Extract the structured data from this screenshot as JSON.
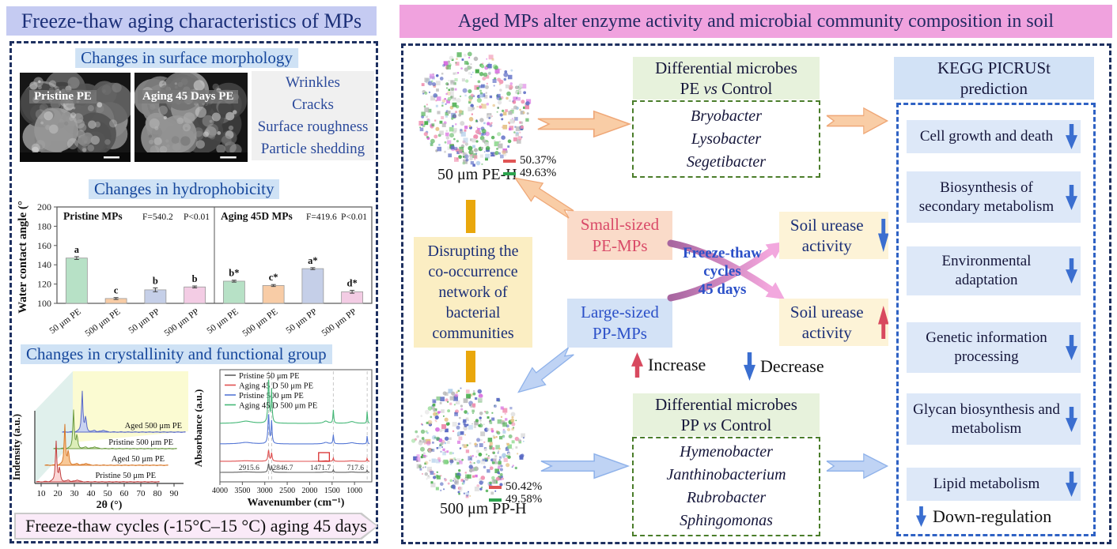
{
  "colors": {
    "leftTitleBg": "#c5cbf2",
    "rightTitleBg": "#f0a2de",
    "headHl": "#cfe2f5",
    "headText": "#16479c",
    "navyText": "#1b2f77",
    "dashBorder": "#1e3060",
    "greenHeadBg": "#e7f2dc",
    "greenDash": "#4a7d2a",
    "keggHeadBg": "#d2e2f6",
    "keggItemBg": "#dde8f8",
    "keggDash": "#2f62c4",
    "blueArrow": "#3a6ed0",
    "redArrow": "#d8495f",
    "disruptBg": "#fbeec3",
    "smallBg": "#fadbc9",
    "smallText": "#d94a68",
    "largeBg": "#d3e2f6",
    "largeText": "#2b50c8",
    "ureaseBg": "#fdf3d7",
    "yellowBar": "#e9a70c",
    "blockOrangeFill": "#f9cda6",
    "blockOrangeStroke": "#efa878",
    "blockBlueFill": "#bfd3f4",
    "blockBlueStroke": "#8fb2ea",
    "bannerBg": "#faeaf8",
    "listText": "#2b4a9b",
    "freezeText": "#2b50c8"
  },
  "left_panel": {
    "title": "Freeze-thaw aging characteristics of MPs",
    "morphology": {
      "heading": "Changes in surface morphology",
      "images": [
        {
          "label": "Pristine PE"
        },
        {
          "label": "Aging 45 Days PE"
        }
      ],
      "features": [
        "Wrinkles",
        "Cracks",
        "Surface roughness",
        "Particle shedding"
      ]
    },
    "hydrophobicity_heading": "Changes in hydrophobicity",
    "crystallinity_heading": "Changes in crystallinity and functional group",
    "bottom_banner": "Freeze-thaw cycles (-15°C–15 °C) aging 45 days"
  },
  "right_panel": {
    "title": "Aged MPs alter enzyme activity and microbial community composition in soil",
    "network_top": {
      "label": "50 μm PE-H",
      "legend": [
        {
          "color": "#e05555",
          "value": "50.37%"
        },
        {
          "color": "#2da44e",
          "value": "49.63%"
        }
      ]
    },
    "network_bottom": {
      "label": "500 μm PP-H",
      "legend": [
        {
          "color": "#e05555",
          "value": "50.42%"
        },
        {
          "color": "#2da44e",
          "value": "49.58%"
        }
      ]
    },
    "diff_pe": {
      "heading_line1": "Differential microbes",
      "subject": "PE",
      "vs": "vs",
      "control": "Control",
      "taxa": [
        "Bryobacter",
        "Lysobacter",
        "Segetibacter"
      ]
    },
    "diff_pp": {
      "heading_line1": "Differential microbes",
      "subject": "PP",
      "vs": "vs",
      "control": "Control",
      "taxa": [
        "Hymenobacter",
        "Janthinobacterium",
        "Rubrobacter",
        "Sphingomonas"
      ]
    },
    "kegg": {
      "heading_line1": "KEGG PICRUSt",
      "heading_line2": "prediction",
      "items": [
        {
          "label": "Cell growth and death",
          "direction": "down"
        },
        {
          "label": "Biosynthesis of secondary metabolism",
          "direction": "down"
        },
        {
          "label": "Environmental adaptation",
          "direction": "down"
        },
        {
          "label": "Genetic information processing",
          "direction": "down"
        },
        {
          "label": "Glycan biosynthesis and metabolism",
          "direction": "down"
        },
        {
          "label": "Lipid metabolism",
          "direction": "down"
        }
      ],
      "legend": "Down-regulation"
    },
    "disrupting": "Disrupting the co-occurrence network of bacterial communities",
    "small_box_line1": "Small-sized",
    "small_box_line2": "PE-MPs",
    "large_box_line1": "Large-sized",
    "large_box_line2": "PP-MPs",
    "freeze_thaw": {
      "line1": "Freeze-thaw",
      "line2": "cycles",
      "line3": "45 days"
    },
    "urease_down_label": "Soil urease activity",
    "urease_up_label": "Soil urease activity",
    "legend": {
      "increase": "Increase",
      "decrease": "Decrease"
    }
  },
  "chart_data": [
    {
      "id": "contact_angle",
      "type": "bar",
      "title": "Changes in hydrophobicity",
      "ylabel": "Water contact angle (°)",
      "ylim": [
        100,
        200
      ],
      "yticks": [
        100,
        120,
        140,
        160,
        180,
        200
      ],
      "bar_colors": [
        "#b7e1c6",
        "#f8cca6",
        "#c5cfe8",
        "#f3cce4"
      ],
      "panels": [
        {
          "label": "Pristine MPs",
          "f_stat": "F=540.2",
          "p_value": "P<0.01",
          "categories": [
            "50 μm PE",
            "500 μm PE",
            "50 μm PP",
            "500 μm PP"
          ],
          "values": [
            147,
            105,
            114,
            117
          ],
          "errors": [
            1.5,
            1,
            2,
            1
          ],
          "sig_letters": [
            "a",
            "c",
            "b",
            "b"
          ]
        },
        {
          "label": "Aging 45D MPs",
          "f_stat": "F=419.6",
          "p_value": "P<0.01",
          "categories": [
            "50 μm PE",
            "500 μm PE",
            "50 μm PP",
            "500 μm PP"
          ],
          "values": [
            123,
            118.5,
            136,
            112
          ],
          "errors": [
            1,
            1,
            1,
            1.5
          ],
          "sig_letters": [
            "b*",
            "c*",
            "a*",
            "d*"
          ]
        }
      ]
    },
    {
      "id": "xrd",
      "type": "line",
      "xlabel": "2θ (°)",
      "ylabel": "Indensity (a.u.)",
      "xticks": [
        10,
        20,
        30,
        40,
        50,
        60,
        70,
        80,
        90
      ],
      "xlim": [
        8,
        92
      ],
      "series": [
        {
          "name": "Pristine 50 μm PE",
          "line": "#c04040",
          "fill": "#fbd6d6",
          "peaks": [
            [
              21.5,
              1.0
            ],
            [
              23.9,
              0.33
            ]
          ]
        },
        {
          "name": "Aged 50 μm PE",
          "line": "#d87828",
          "fill": "#f8c897",
          "peaks": [
            [
              21.5,
              1.0
            ],
            [
              23.9,
              0.34
            ]
          ]
        },
        {
          "name": "Pristine 500 μm PE",
          "line": "#6a9a40",
          "fill": "#ddeeb9",
          "peaks": [
            [
              21.5,
              0.95
            ],
            [
              23.9,
              0.32
            ]
          ]
        },
        {
          "name": "Aged 500 μm PE",
          "line": "#5868c8",
          "fill": "#c9d3f1",
          "peaks": [
            [
              21.5,
              1.0
            ],
            [
              23.9,
              0.36
            ]
          ]
        }
      ]
    },
    {
      "id": "ftir",
      "type": "line",
      "xlabel": "Wavenumber (cm⁻¹)",
      "ylabel": "Absorbance (a.u.)",
      "xticks": [
        4000,
        3500,
        3000,
        2500,
        2000,
        1500,
        1000
      ],
      "xlim": [
        4000,
        650
      ],
      "series": [
        {
          "name": "Pristine 50 μm PE",
          "line": "#606060",
          "amp": 11
        },
        {
          "name": "Aging 45 D 50 μm PE",
          "line": "#e05050",
          "amp": 14
        },
        {
          "name": "Pristine 500 μm PE",
          "line": "#5577d5",
          "amp": 38
        },
        {
          "name": "Aging 45 D 500 μm PE",
          "line": "#46b878",
          "amp": 56
        }
      ],
      "peak_positions": [
        2915.6,
        2846.7,
        1471.7,
        717.6
      ],
      "peak_labels": [
        {
          "text": "2915.6",
          "x": 3350
        },
        {
          "text": "2846.7",
          "x": 2600
        },
        {
          "text": "1471.7",
          "x": 1760
        },
        {
          "text": "717.6",
          "x": 980
        }
      ]
    }
  ]
}
